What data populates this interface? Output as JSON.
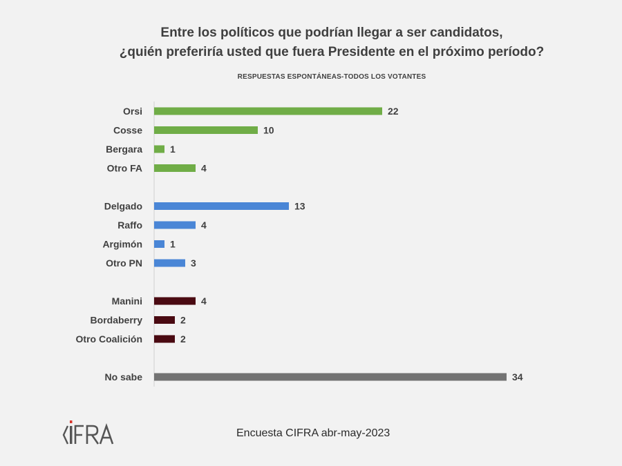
{
  "title_line1": "Entre los políticos que podrían llegar a ser candidatos,",
  "title_line2": "¿quién preferiría usted que fuera Presidente en el próximo período?",
  "subtitle": "RESPUESTAS ESPONTÁNEAS-TODOS LOS VOTANTES",
  "footer": "Encuesta CIFRA abr-may-2023",
  "logo_text": "CIFRA",
  "colors": {
    "fa": "#70ad47",
    "pn": "#4a86d6",
    "coalicion": "#4a0a12",
    "nosabe": "#737373",
    "logo_red": "#d9342b"
  },
  "chart_data": {
    "type": "bar",
    "orientation": "horizontal",
    "title": "Entre los políticos que podrían llegar a ser candidatos, ¿quién preferiría usted que fuera Presidente en el próximo período?",
    "subtitle": "RESPUESTAS ESPONTÁNEAS-TODOS LOS VOTANTES",
    "xlim": [
      0,
      34
    ],
    "grid": false,
    "legend": "none",
    "groups": [
      {
        "color": "#70ad47",
        "items": [
          {
            "label": "Orsi",
            "value": 22
          },
          {
            "label": "Cosse",
            "value": 10
          },
          {
            "label": "Bergara",
            "value": 1
          },
          {
            "label": "Otro FA",
            "value": 4
          }
        ]
      },
      {
        "color": "#4a86d6",
        "items": [
          {
            "label": "Delgado",
            "value": 13
          },
          {
            "label": "Raffo",
            "value": 4
          },
          {
            "label": "Argimón",
            "value": 1
          },
          {
            "label": "Otro PN",
            "value": 3
          }
        ]
      },
      {
        "color": "#4a0a12",
        "items": [
          {
            "label": "Manini",
            "value": 4
          },
          {
            "label": "Bordaberry",
            "value": 2
          },
          {
            "label": "Otro Coalición",
            "value": 2
          }
        ]
      },
      {
        "color": "#737373",
        "items": [
          {
            "label": "No sabe",
            "value": 34
          }
        ]
      }
    ]
  }
}
